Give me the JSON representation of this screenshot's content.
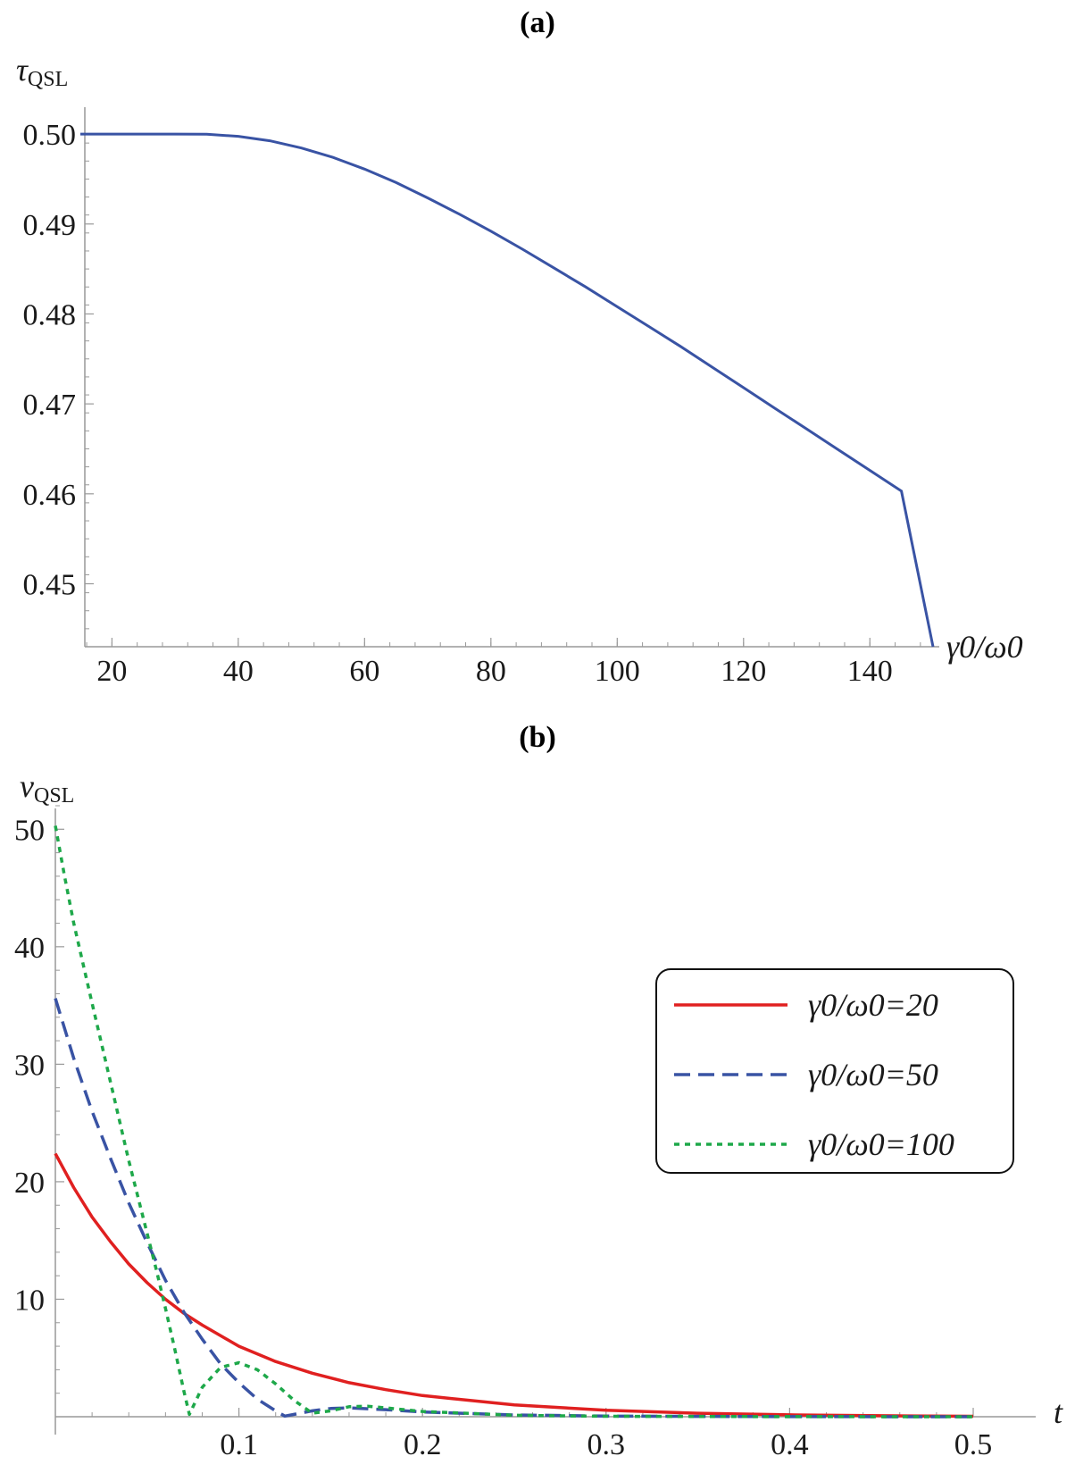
{
  "chart_data": [
    {
      "panel": "(a)",
      "type": "line",
      "ylabel": "τ",
      "ylabel_sub": "QSL",
      "xlabel": "γ0/ω0",
      "xlim": [
        15,
        150
      ],
      "ylim": [
        0.443,
        0.501
      ],
      "x_ticks": [
        20,
        40,
        60,
        80,
        100,
        120,
        140
      ],
      "y_ticks": [
        "0.45",
        "0.46",
        "0.47",
        "0.48",
        "0.49",
        "0.50"
      ],
      "y_tick_values": [
        0.45,
        0.46,
        0.47,
        0.48,
        0.49,
        0.5
      ],
      "series": [
        {
          "color": "#3953a4",
          "style": "solid",
          "x": [
            15,
            20,
            25,
            30,
            35,
            40,
            45,
            50,
            55,
            60,
            65,
            70,
            75,
            80,
            85,
            90,
            95,
            100,
            105,
            110,
            115,
            120,
            125,
            130,
            135,
            140,
            145,
            150
          ],
          "y": [
            0.5,
            0.5,
            0.5,
            0.5,
            0.49998,
            0.49975,
            0.49925,
            0.49845,
            0.4974,
            0.4961,
            0.4946,
            0.4929,
            0.4911,
            0.4892,
            0.4872,
            0.4851,
            0.483,
            0.4808,
            0.4786,
            0.4764,
            0.4741,
            0.4718,
            0.4695,
            0.4672,
            0.4649,
            0.4626,
            0.4603,
            0.443
          ]
        }
      ]
    },
    {
      "panel": "(b)",
      "type": "line",
      "ylabel": "v",
      "ylabel_sub": "QSL",
      "xlabel": "t",
      "xlim": [
        0,
        0.5
      ],
      "ylim": [
        0,
        52
      ],
      "x_ticks": [
        "0.1",
        "0.2",
        "0.3",
        "0.4",
        "0.5"
      ],
      "x_tick_values": [
        0.1,
        0.2,
        0.3,
        0.4,
        0.5
      ],
      "y_ticks": [
        "10",
        "20",
        "30",
        "40",
        "50"
      ],
      "y_tick_values": [
        10,
        20,
        30,
        40,
        50
      ],
      "legend_position": "right",
      "series": [
        {
          "name": "γ0/ω0=20",
          "color": "#e02020",
          "style": "solid",
          "x": [
            0,
            0.01,
            0.02,
            0.03,
            0.04,
            0.05,
            0.06,
            0.07,
            0.08,
            0.1,
            0.12,
            0.14,
            0.16,
            0.18,
            0.2,
            0.25,
            0.3,
            0.35,
            0.4,
            0.45,
            0.5
          ],
          "y": [
            22.4,
            19.5,
            17.0,
            14.9,
            13.0,
            11.4,
            10.0,
            8.8,
            7.8,
            6.0,
            4.7,
            3.7,
            2.9,
            2.3,
            1.8,
            1.0,
            0.55,
            0.3,
            0.16,
            0.08,
            0.04
          ]
        },
        {
          "name": "γ0/ω0=50",
          "color": "#3953a4",
          "style": "dashed",
          "x": [
            0,
            0.01,
            0.02,
            0.03,
            0.04,
            0.05,
            0.06,
            0.07,
            0.08,
            0.09,
            0.1,
            0.11,
            0.12,
            0.125,
            0.13,
            0.14,
            0.15,
            0.16,
            0.18,
            0.2,
            0.25,
            0.3,
            0.4,
            0.5
          ],
          "y": [
            35.6,
            30.5,
            26.0,
            22.0,
            18.2,
            14.8,
            11.6,
            8.9,
            6.6,
            4.5,
            2.9,
            1.5,
            0.5,
            0.05,
            0.2,
            0.5,
            0.7,
            0.75,
            0.6,
            0.4,
            0.15,
            0.05,
            0.01,
            0.0
          ]
        },
        {
          "name": "γ0/ω0=100",
          "color": "#1ea84a",
          "style": "dotted",
          "x": [
            0,
            0.005,
            0.01,
            0.02,
            0.03,
            0.04,
            0.05,
            0.055,
            0.06,
            0.065,
            0.07,
            0.073,
            0.08,
            0.09,
            0.1,
            0.11,
            0.12,
            0.13,
            0.14,
            0.15,
            0.16,
            0.17,
            0.18,
            0.2,
            0.25,
            0.3,
            0.4,
            0.5
          ],
          "y": [
            50.3,
            46.0,
            42.0,
            35.2,
            28.5,
            21.8,
            15.6,
            12.5,
            9.2,
            5.8,
            2.2,
            0.2,
            2.5,
            4.2,
            4.6,
            4.0,
            2.8,
            1.4,
            0.3,
            0.5,
            0.85,
            0.9,
            0.75,
            0.45,
            0.12,
            0.04,
            0.01,
            0.0
          ]
        }
      ]
    }
  ]
}
